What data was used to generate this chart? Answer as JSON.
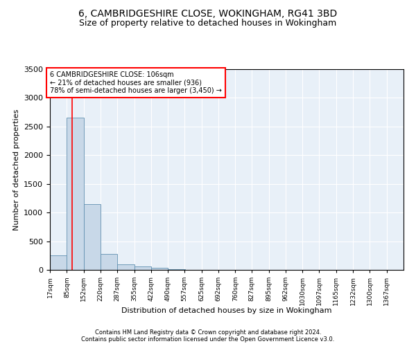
{
  "title": "6, CAMBRIDGESHIRE CLOSE, WOKINGHAM, RG41 3BD",
  "subtitle": "Size of property relative to detached houses in Wokingham",
  "xlabel": "Distribution of detached houses by size in Wokingham",
  "ylabel": "Number of detached properties",
  "footer1": "Contains HM Land Registry data © Crown copyright and database right 2024.",
  "footer2": "Contains public sector information licensed under the Open Government Licence v3.0.",
  "annotation_line1": "6 CAMBRIDGESHIRE CLOSE: 106sqm",
  "annotation_line2": "← 21% of detached houses are smaller (936)",
  "annotation_line3": "78% of semi-detached houses are larger (3,450) →",
  "bar_color": "#c8d8e8",
  "bar_edge_color": "#6090b0",
  "red_line_x": 106,
  "categories": [
    "17sqm",
    "85sqm",
    "152sqm",
    "220sqm",
    "287sqm",
    "355sqm",
    "422sqm",
    "490sqm",
    "557sqm",
    "625sqm",
    "692sqm",
    "760sqm",
    "827sqm",
    "895sqm",
    "962sqm",
    "1030sqm",
    "1097sqm",
    "1165sqm",
    "1232sqm",
    "1300sqm",
    "1367sqm"
  ],
  "bin_edges": [
    17,
    85,
    152,
    220,
    287,
    355,
    422,
    490,
    557,
    625,
    692,
    760,
    827,
    895,
    962,
    1030,
    1097,
    1165,
    1232,
    1300,
    1367
  ],
  "values": [
    255,
    2650,
    1150,
    280,
    100,
    58,
    38,
    8,
    2,
    1,
    1,
    0,
    0,
    0,
    0,
    0,
    0,
    0,
    0,
    0,
    0
  ],
  "ylim": [
    0,
    3500
  ],
  "yticks": [
    0,
    500,
    1000,
    1500,
    2000,
    2500,
    3000,
    3500
  ],
  "plot_bg_color": "#e8f0f8",
  "title_fontsize": 10,
  "subtitle_fontsize": 9,
  "annotation_box_color": "white",
  "annotation_box_edge": "red"
}
